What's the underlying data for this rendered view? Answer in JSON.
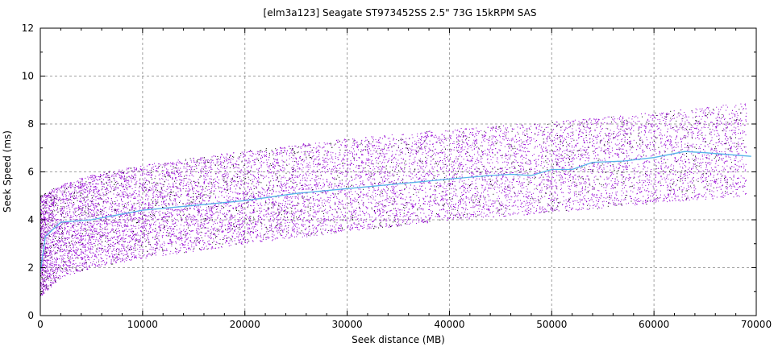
{
  "chart_data": {
    "type": "scatter",
    "title": "[elm3a123] Seagate ST973452SS 2.5\" 73G 15kRPM SAS",
    "xlabel": "Seek distance (MB)",
    "ylabel": "Seek Speed (ms)",
    "xlim": [
      0,
      70000
    ],
    "ylim": [
      0,
      12
    ],
    "x_ticks": [
      0,
      10000,
      20000,
      30000,
      40000,
      50000,
      60000,
      70000
    ],
    "y_ticks": [
      0,
      2,
      4,
      6,
      8,
      10,
      12
    ],
    "x_minor_step": 2000,
    "y_minor_step": 1,
    "grid": true,
    "legend": "none",
    "colors": {
      "scatter": "#9400d3",
      "secondary_points": "#000000",
      "mean_line": "#56b4e9",
      "grid": "#a0a0a0"
    },
    "scatter_envelope": {
      "x": [
        0,
        2000,
        5000,
        10000,
        20000,
        30000,
        40000,
        50000,
        60000,
        69000
      ],
      "low": [
        0.8,
        1.6,
        2.0,
        2.4,
        3.0,
        3.5,
        4.0,
        4.3,
        4.7,
        5.0
      ],
      "high": [
        5.0,
        5.5,
        5.9,
        6.3,
        6.9,
        7.4,
        7.8,
        8.1,
        8.5,
        8.9
      ]
    },
    "mean_line": {
      "x": [
        0,
        500,
        2000,
        5000,
        10000,
        15000,
        20000,
        25000,
        30000,
        35000,
        40000,
        44000,
        46000,
        48000,
        50000,
        52000,
        54000,
        57000,
        60000,
        63000,
        65000,
        69500
      ],
      "y": [
        1.8,
        3.3,
        3.9,
        4.0,
        4.4,
        4.6,
        4.8,
        5.1,
        5.3,
        5.5,
        5.7,
        5.85,
        5.9,
        5.85,
        6.1,
        6.1,
        6.4,
        6.45,
        6.6,
        6.85,
        6.8,
        6.65
      ]
    }
  }
}
